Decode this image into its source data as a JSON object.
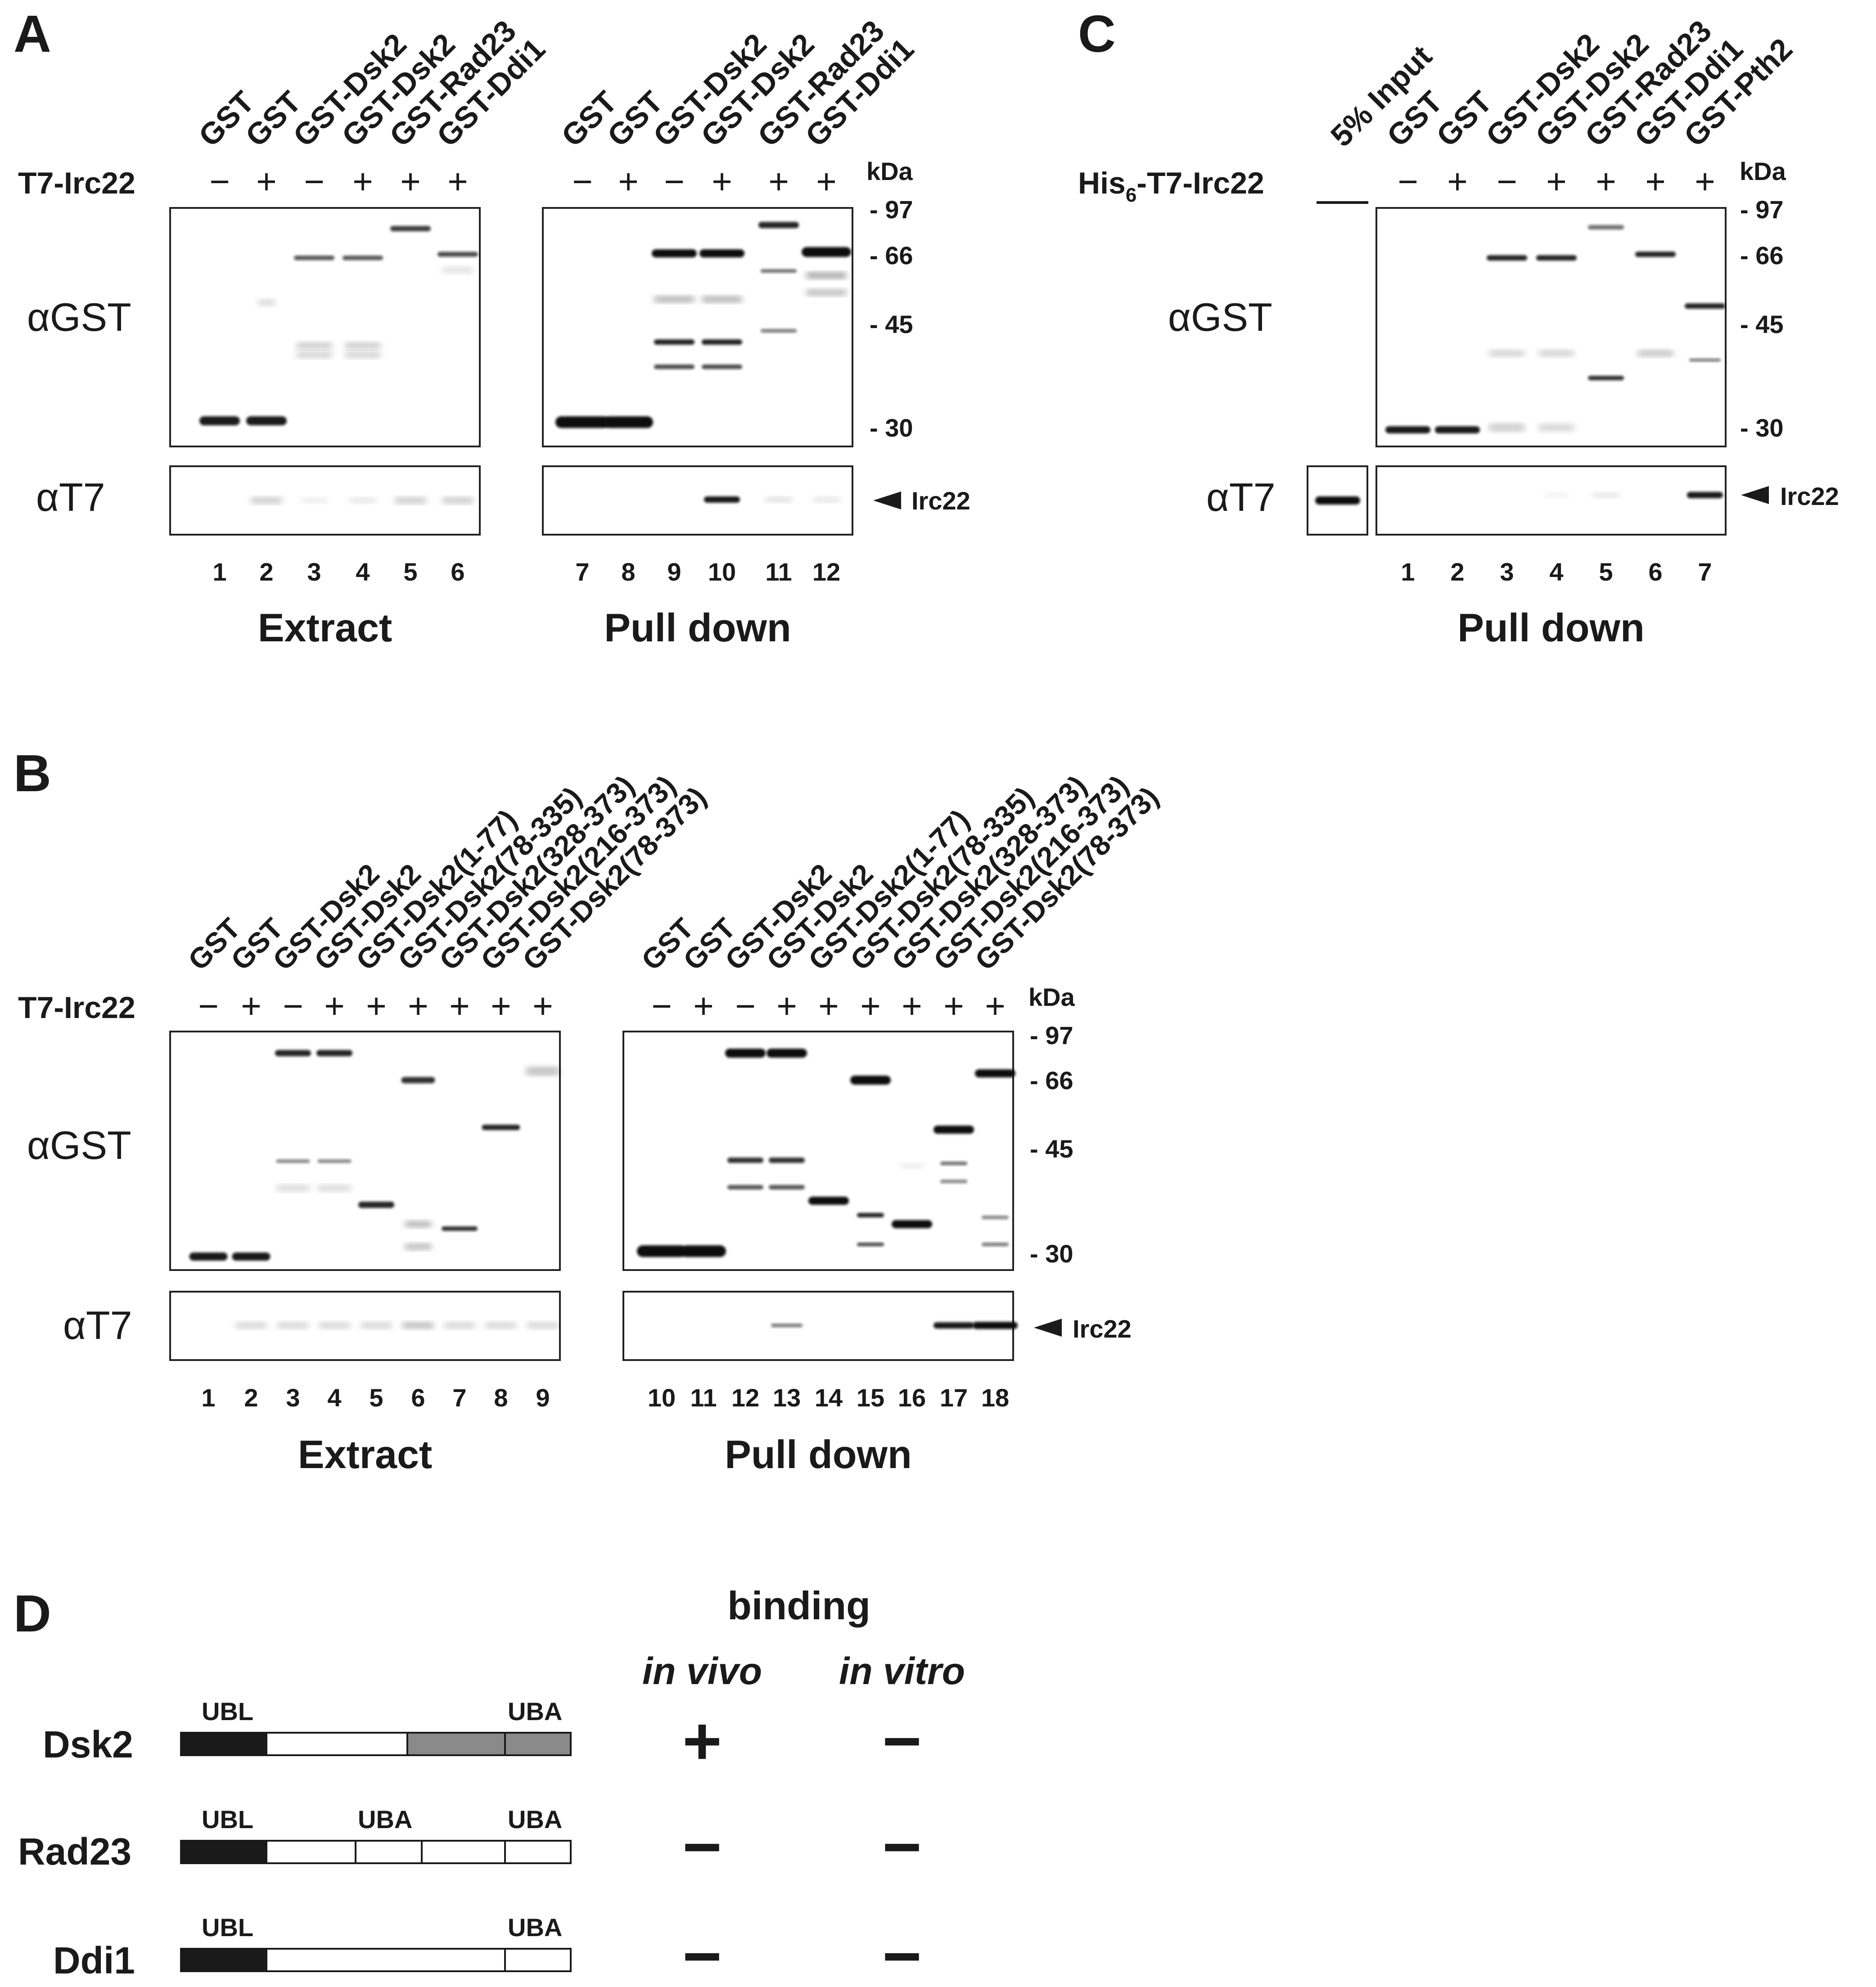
{
  "panels": {
    "A": {
      "letter": "A",
      "condition_label": "T7-Irc22",
      "extract": {
        "lanes": [
          "GST",
          "GST",
          "GST-Dsk2",
          "GST-Dsk2",
          "GST-Rad23",
          "GST-Ddi1"
        ],
        "signs": [
          "−",
          "+",
          "−",
          "+",
          "+",
          "+"
        ],
        "numbers": [
          "1",
          "2",
          "3",
          "4",
          "5",
          "6"
        ],
        "caption": "Extract"
      },
      "pulldown": {
        "lanes": [
          "GST",
          "GST",
          "GST-Dsk2",
          "GST-Dsk2",
          "GST-Rad23",
          "GST-Ddi1"
        ],
        "signs": [
          "−",
          "+",
          "−",
          "+",
          "+",
          "+"
        ],
        "numbers": [
          "7",
          "8",
          "9",
          "10",
          "11",
          "12"
        ],
        "caption": "Pull down"
      },
      "antibodies": [
        "αGST",
        "αT7"
      ],
      "markers": {
        "unit": "kDa",
        "values": [
          "- 97",
          "- 66",
          "- 45",
          "- 30"
        ]
      },
      "arrow_label": "Irc22"
    },
    "B": {
      "letter": "B",
      "condition_label": "T7-Irc22",
      "extract": {
        "lanes": [
          "GST",
          "GST",
          "GST-Dsk2",
          "GST-Dsk2",
          "GST-Dsk2(1-77)",
          "GST-Dsk2(78-335)",
          "GST-Dsk2(328-373)",
          "GST-Dsk2(216-373)",
          "GST-Dsk2(78-373)"
        ],
        "signs": [
          "−",
          "+",
          "−",
          "+",
          "+",
          "+",
          "+",
          "+",
          "+"
        ],
        "numbers": [
          "1",
          "2",
          "3",
          "4",
          "5",
          "6",
          "7",
          "8",
          "9"
        ],
        "caption": "Extract"
      },
      "pulldown": {
        "lanes": [
          "GST",
          "GST",
          "GST-Dsk2",
          "GST-Dsk2",
          "GST-Dsk2(1-77)",
          "GST-Dsk2(78-335)",
          "GST-Dsk2(328-373)",
          "GST-Dsk2(216-373)",
          "GST-Dsk2(78-373)"
        ],
        "signs": [
          "−",
          "+",
          "−",
          "+",
          "+",
          "+",
          "+",
          "+",
          "+"
        ],
        "numbers": [
          "10",
          "11",
          "12",
          "13",
          "14",
          "15",
          "16",
          "17",
          "18"
        ],
        "caption": "Pull down"
      },
      "antibodies": [
        "αGST",
        "αT7"
      ],
      "markers": {
        "unit": "kDa",
        "values": [
          "- 97",
          "- 66",
          "- 45",
          "- 30"
        ]
      },
      "arrow_label": "Irc22"
    },
    "C": {
      "letter": "C",
      "input_label": "5% Input",
      "condition_label_main": "His",
      "condition_label_sub": "6",
      "condition_label_rest": "-T7-Irc22",
      "pulldown": {
        "lanes": [
          "GST",
          "GST",
          "GST-Dsk2",
          "GST-Dsk2",
          "GST-Rad23",
          "GST-Ddi1",
          "GST-Pth2"
        ],
        "signs": [
          "−",
          "+",
          "−",
          "+",
          "+",
          "+",
          "+"
        ],
        "numbers": [
          "1",
          "2",
          "3",
          "4",
          "5",
          "6",
          "7"
        ],
        "caption": "Pull down"
      },
      "antibodies": [
        "αGST",
        "αT7"
      ],
      "markers": {
        "unit": "kDa",
        "values": [
          "- 97",
          "- 66",
          "- 45",
          "- 30"
        ]
      },
      "arrow_label": "Irc22"
    },
    "D": {
      "letter": "D",
      "header": "binding",
      "col_in_vivo": "in vivo",
      "col_in_vitro": "in vitro",
      "proteins": [
        {
          "name": "Dsk2",
          "domains": [
            "UBL",
            "UBA"
          ],
          "in_vivo": "+",
          "in_vitro": "−"
        },
        {
          "name": "Rad23",
          "domains": [
            "UBL",
            "UBA",
            "UBA"
          ],
          "in_vivo": "−",
          "in_vitro": "−"
        },
        {
          "name": "Ddi1",
          "domains": [
            "UBL",
            "UBA"
          ],
          "in_vivo": "−",
          "in_vitro": "−"
        }
      ]
    }
  }
}
